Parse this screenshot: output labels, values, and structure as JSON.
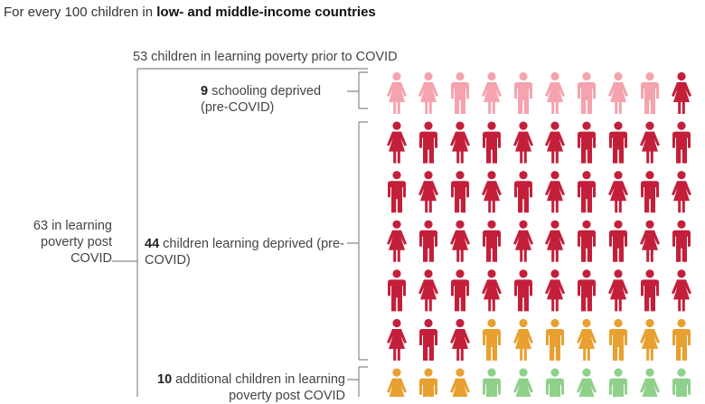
{
  "headline": {
    "prefix": "For every 100 children in ",
    "emphasis": "low- and middle-income countries"
  },
  "annotations": {
    "prior": "53 children in learning poverty prior to COVID",
    "post": "63 in learning poverty post COVID",
    "schooling": {
      "count": "9",
      "text": " schooling deprived (pre-COVID)"
    },
    "learning": {
      "count": "44",
      "text": " children learning deprived (pre-COVID)"
    },
    "additional": {
      "count": "10",
      "text": " additional children in learning poverty post COVID"
    }
  },
  "grid": {
    "columns": 10,
    "visible_rows": 7,
    "colors": {
      "schooling": "#f5a3ae",
      "learning": "#c41f3a",
      "additional": "#e8a030",
      "other": "#8fd18a"
    },
    "figures": [
      "schooling-f",
      "schooling-f",
      "schooling-m",
      "schooling-f",
      "schooling-m",
      "schooling-f",
      "schooling-m",
      "schooling-f",
      "schooling-m",
      "learning-f",
      "learning-f",
      "learning-m",
      "learning-f",
      "learning-m",
      "learning-f",
      "learning-f",
      "learning-m",
      "learning-m",
      "learning-f",
      "learning-m",
      "learning-m",
      "learning-f",
      "learning-m",
      "learning-f",
      "learning-m",
      "learning-f",
      "learning-m",
      "learning-f",
      "learning-m",
      "learning-f",
      "learning-f",
      "learning-m",
      "learning-f",
      "learning-m",
      "learning-f",
      "learning-f",
      "learning-m",
      "learning-m",
      "learning-f",
      "learning-m",
      "learning-m",
      "learning-f",
      "learning-m",
      "learning-f",
      "learning-m",
      "learning-f",
      "learning-m",
      "learning-f",
      "learning-m",
      "learning-f",
      "learning-f",
      "learning-m",
      "learning-f",
      "additional-m",
      "additional-f",
      "additional-m",
      "additional-f",
      "additional-m",
      "additional-f",
      "additional-m",
      "additional-f",
      "additional-m",
      "additional-f",
      "other-m",
      "other-f",
      "other-m",
      "other-f",
      "other-m",
      "other-f",
      "other-m"
    ]
  }
}
